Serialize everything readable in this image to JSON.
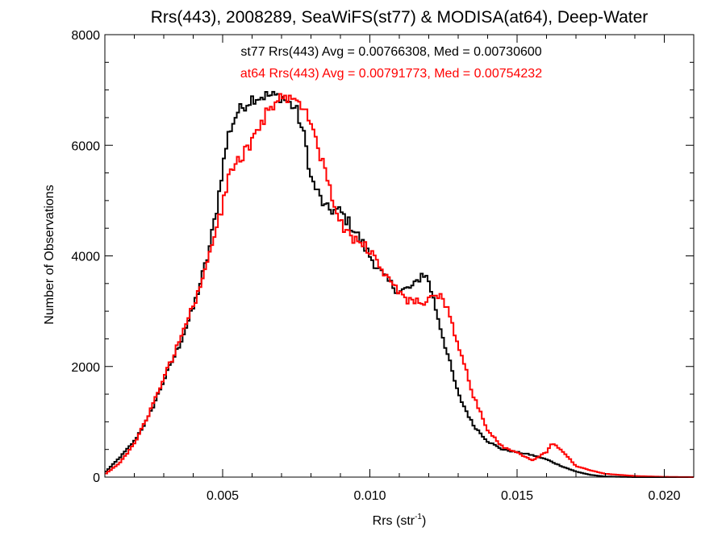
{
  "chart_data": {
    "type": "line",
    "title": "Rrs(443), 2008289, SeaWiFS(st77) & MODISA(at64), Deep-Water",
    "xlabel": "Rrs (str",
    "xlabel_sup": "-1",
    "xlabel_end": ")",
    "ylabel": "Number of Observations",
    "xlim": [
      0.001,
      0.021
    ],
    "ylim": [
      0,
      8000
    ],
    "grid": false,
    "x_ticks": [
      {
        "value": 0.005,
        "label": "0.005"
      },
      {
        "value": 0.01,
        "label": "0.010"
      },
      {
        "value": 0.015,
        "label": "0.015"
      },
      {
        "value": 0.02,
        "label": "0.020"
      }
    ],
    "y_ticks": [
      {
        "value": 0,
        "label": "0"
      },
      {
        "value": 2000,
        "label": "2000"
      },
      {
        "value": 4000,
        "label": "4000"
      },
      {
        "value": 6000,
        "label": "6000"
      },
      {
        "value": 8000,
        "label": "8000"
      }
    ],
    "annotations": [
      {
        "text": "st77 Rrs(443) Avg = 0.00766308, Med = 0.00730600",
        "color": "#000000"
      },
      {
        "text": "at64 Rrs(443) Avg = 0.00791773, Med = 0.00754232",
        "color": "#ff0000"
      }
    ],
    "series": [
      {
        "name": "st77",
        "color": "#000000",
        "points": [
          [
            0.001,
            80
          ],
          [
            0.0015,
            350
          ],
          [
            0.002,
            650
          ],
          [
            0.0025,
            1100
          ],
          [
            0.003,
            1750
          ],
          [
            0.0035,
            2350
          ],
          [
            0.004,
            3050
          ],
          [
            0.0045,
            4000
          ],
          [
            0.0048,
            4850
          ],
          [
            0.005,
            5600
          ],
          [
            0.0052,
            6200
          ],
          [
            0.0055,
            6600
          ],
          [
            0.006,
            6850
          ],
          [
            0.0065,
            6900
          ],
          [
            0.007,
            6880
          ],
          [
            0.0075,
            6650
          ],
          [
            0.0078,
            6100
          ],
          [
            0.008,
            5400
          ],
          [
            0.0085,
            4850
          ],
          [
            0.009,
            4800
          ],
          [
            0.0095,
            4450
          ],
          [
            0.01,
            4000
          ],
          [
            0.0105,
            3600
          ],
          [
            0.011,
            3350
          ],
          [
            0.0115,
            3450
          ],
          [
            0.0118,
            3700
          ],
          [
            0.012,
            3550
          ],
          [
            0.0125,
            2500
          ],
          [
            0.013,
            1500
          ],
          [
            0.0135,
            950
          ],
          [
            0.014,
            650
          ],
          [
            0.0145,
            500
          ],
          [
            0.015,
            450
          ],
          [
            0.0155,
            400
          ],
          [
            0.016,
            320
          ],
          [
            0.0165,
            200
          ],
          [
            0.017,
            100
          ],
          [
            0.0175,
            40
          ],
          [
            0.018,
            10
          ],
          [
            0.019,
            0
          ],
          [
            0.021,
            0
          ]
        ]
      },
      {
        "name": "at64",
        "color": "#ff0000",
        "points": [
          [
            0.001,
            50
          ],
          [
            0.0015,
            250
          ],
          [
            0.002,
            600
          ],
          [
            0.0025,
            1150
          ],
          [
            0.003,
            1800
          ],
          [
            0.0035,
            2400
          ],
          [
            0.004,
            3100
          ],
          [
            0.0045,
            3850
          ],
          [
            0.005,
            4900
          ],
          [
            0.0052,
            5400
          ],
          [
            0.0055,
            5700
          ],
          [
            0.006,
            6050
          ],
          [
            0.0065,
            6600
          ],
          [
            0.007,
            6850
          ],
          [
            0.0075,
            6880
          ],
          [
            0.008,
            6400
          ],
          [
            0.0085,
            5500
          ],
          [
            0.009,
            4600
          ],
          [
            0.0095,
            4300
          ],
          [
            0.01,
            4100
          ],
          [
            0.0105,
            3700
          ],
          [
            0.011,
            3300
          ],
          [
            0.0115,
            3150
          ],
          [
            0.012,
            3200
          ],
          [
            0.0125,
            3250
          ],
          [
            0.013,
            2400
          ],
          [
            0.0135,
            1500
          ],
          [
            0.014,
            850
          ],
          [
            0.0145,
            550
          ],
          [
            0.015,
            450
          ],
          [
            0.0155,
            300
          ],
          [
            0.016,
            450
          ],
          [
            0.0162,
            620
          ],
          [
            0.0165,
            500
          ],
          [
            0.017,
            200
          ],
          [
            0.0175,
            120
          ],
          [
            0.018,
            60
          ],
          [
            0.019,
            20
          ],
          [
            0.02,
            5
          ],
          [
            0.021,
            0
          ]
        ]
      }
    ]
  }
}
